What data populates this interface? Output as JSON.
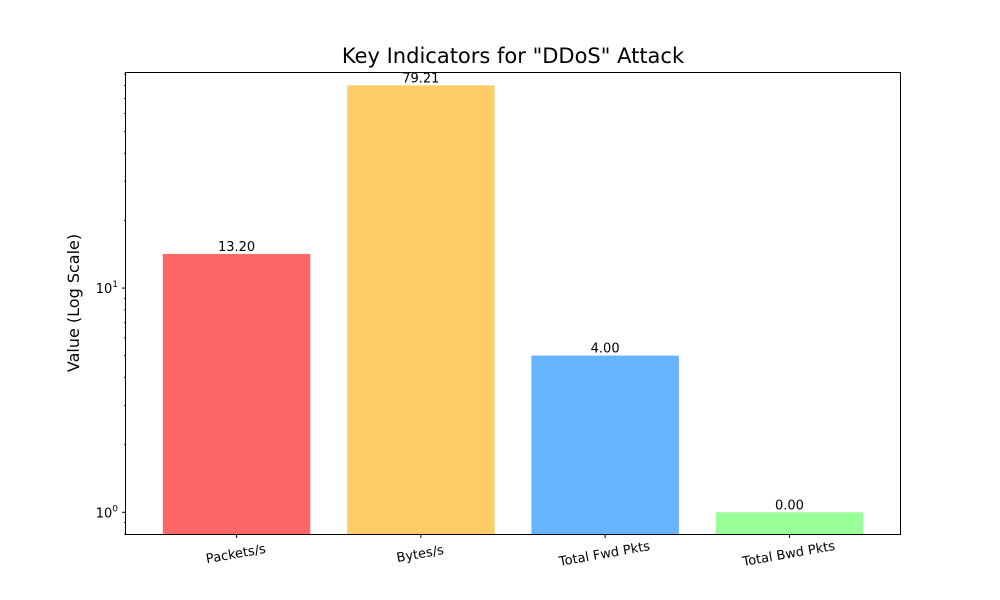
{
  "chart_data": {
    "type": "bar",
    "title": "Key Indicators for \"DDoS\" Attack",
    "xlabel": "",
    "ylabel": "Value (Log Scale)",
    "yscale": "log",
    "ylim": [
      0.8,
      92
    ],
    "y_ticks": [
      {
        "value": 1,
        "base": "10",
        "exp": "0"
      },
      {
        "value": 10,
        "base": "10",
        "exp": "1"
      }
    ],
    "categories": [
      "Packets/s",
      "Bytes/s",
      "Total Fwd Pkts",
      "Total Bwd Pkts"
    ],
    "values": [
      14.2,
      80.21,
      5.0,
      1.0
    ],
    "data_labels": [
      "13.20",
      "79.21",
      "4.00",
      "0.00"
    ],
    "colors": [
      "#ff6666",
      "#ffcc66",
      "#66b3ff",
      "#99ff99"
    ],
    "tick_rotation_deg": -10,
    "grid": false,
    "legend": "none"
  }
}
